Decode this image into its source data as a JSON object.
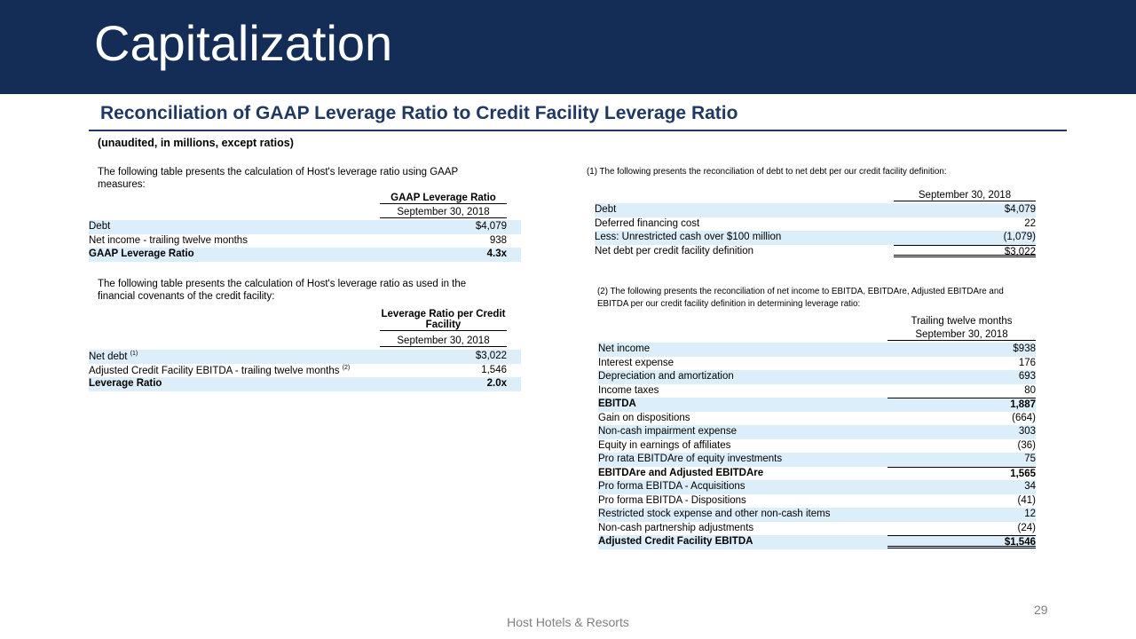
{
  "header": {
    "title": "Capitalization"
  },
  "subtitle": "Reconciliation of GAAP Leverage Ratio to Credit Facility Leverage Ratio",
  "note": "(unaudited, in millions, except ratios)",
  "gaap_table": {
    "intro": "The following table presents the calculation of Host's leverage ratio using GAAP measures:",
    "header": "GAAP  Leverage Ratio",
    "period": "September 30, 2018",
    "rows": [
      {
        "label": "Debt",
        "value": "$4,079"
      },
      {
        "label": "Net income - trailing twelve months",
        "value": "938"
      },
      {
        "label": "GAAP  Leverage Ratio",
        "value": "4.3x"
      }
    ]
  },
  "credit_table": {
    "intro": "The following table presents the calculation of Host's leverage ratio as used in the financial covenants of the credit facility:",
    "header": "Leverage Ratio per Credit Facility",
    "period": "September 30, 2018",
    "rows": [
      {
        "label": "Net debt",
        "note": "(1)",
        "value": "$3,022"
      },
      {
        "label": "Adjusted Credit Facility EBITDA - trailing twelve months",
        "note": "(2)",
        "value": "1,546"
      },
      {
        "label": "Leverage Ratio",
        "value": "2.0x"
      }
    ]
  },
  "net_debt_table": {
    "intro": "(1) The following presents the reconciliation of debt to net debt per our credit facility definition:",
    "period": "September 30, 2018",
    "rows": [
      {
        "label": "Debt",
        "value": "$4,079"
      },
      {
        "label": "Deferred financing cost",
        "value": "22"
      },
      {
        "label": "Less: Unrestricted cash over $100 million",
        "value": "(1,079)"
      },
      {
        "label": "Net debt per credit facility definition",
        "value": "$3,022"
      }
    ]
  },
  "ebitda_table": {
    "intro": "(2) The following presents the reconciliation of net income to EBITDA,  EBITDAre,  Adjusted EBITDAre and EBITDA  per our credit facility definition in determining leverage ratio:",
    "header": "Trailing twelve months",
    "period": "September 30, 2018",
    "rows": [
      {
        "label": "Net income",
        "value": "$938"
      },
      {
        "label": "Interest expense",
        "value": "176"
      },
      {
        "label": "Depreciation and amortization",
        "value": "693"
      },
      {
        "label": "Income taxes",
        "value": "80"
      },
      {
        "label": "EBITDA",
        "value": "1,887"
      },
      {
        "label": "Gain on dispositions",
        "value": "(664)"
      },
      {
        "label": "Non-cash impairment expense",
        "value": "303"
      },
      {
        "label": "Equity in earnings of affiliates",
        "value": "(36)"
      },
      {
        "label": "Pro rata EBITDAre of equity investments",
        "value": "75"
      },
      {
        "label": "EBITDAre  and Adjusted EBITDAre",
        "value": "1,565"
      },
      {
        "label": "Pro forma EBITDA - Acquisitions",
        "value": "34"
      },
      {
        "label": "Pro forma EBITDA - Dispositions",
        "value": "(41)"
      },
      {
        "label": "Restricted stock expense and other non-cash items",
        "value": "12"
      },
      {
        "label": "Non-cash partnership adjustments",
        "value": "(24)"
      },
      {
        "label": "Adjusted  Credit Facility EBITDA",
        "value": "$1,546"
      }
    ]
  },
  "footer": {
    "company": "Host Hotels & Resorts",
    "page": "29"
  }
}
